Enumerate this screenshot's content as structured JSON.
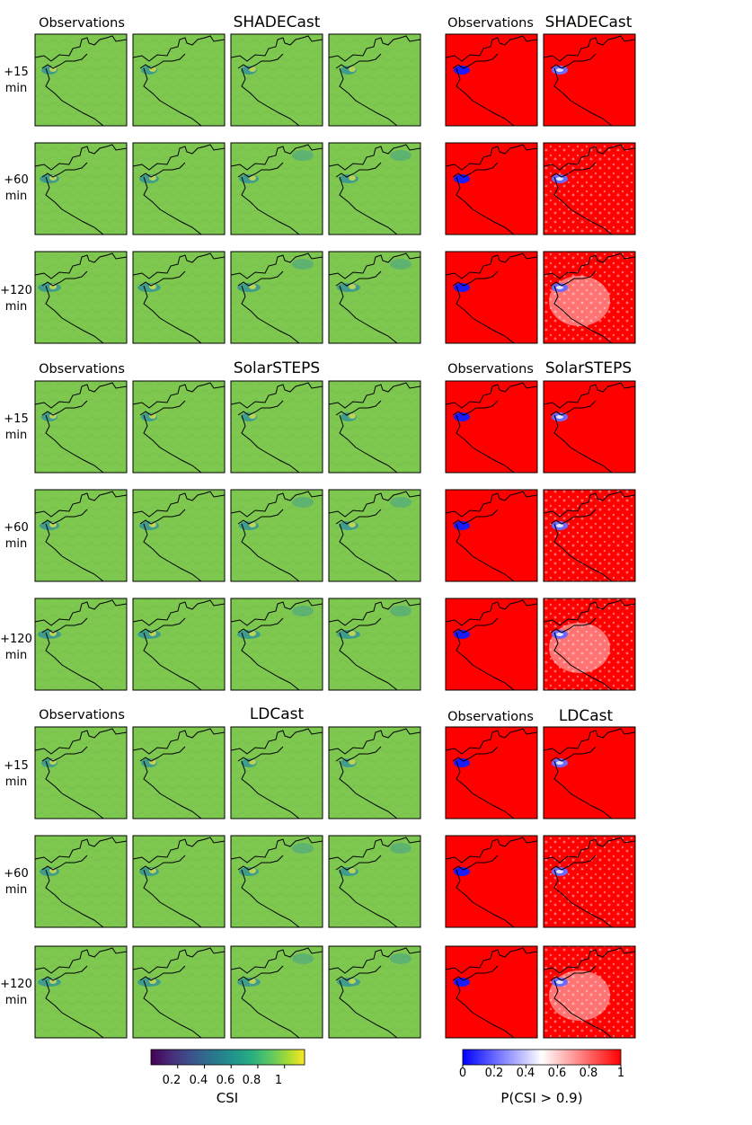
{
  "chart_data": {
    "type": "heatmap",
    "blocks": [
      {
        "method": "SHADECast",
        "observations_label": "Observations",
        "right_observations_label": "Observations",
        "right_method_label": "SHADECast",
        "rows": [
          {
            "lead": "+15",
            "unit": "min"
          },
          {
            "lead": "+60",
            "unit": "min"
          },
          {
            "lead": "+120",
            "unit": "min"
          }
        ]
      },
      {
        "method": "SolarSTEPS",
        "observations_label": "Observations",
        "right_observations_label": "Observations",
        "right_method_label": "SolarSTEPS",
        "rows": [
          {
            "lead": "+15",
            "unit": "min"
          },
          {
            "lead": "+60",
            "unit": "min"
          },
          {
            "lead": "+120",
            "unit": "min"
          }
        ]
      },
      {
        "method": "LDCast",
        "observations_label": "Observations",
        "right_observations_label": "Observations",
        "right_method_label": "LDCast",
        "rows": [
          {
            "lead": "+15",
            "unit": "min"
          },
          {
            "lead": "+60",
            "unit": "min"
          },
          {
            "lead": "+120",
            "unit": "min"
          }
        ]
      }
    ],
    "colorbars": [
      {
        "label": "CSI",
        "colormap": "viridis",
        "ticks": [
          "0.2",
          "0.4",
          "0.6",
          "0.8",
          "1"
        ],
        "tick_values": [
          0.2,
          0.4,
          0.6,
          0.8,
          1.0
        ],
        "range": [
          0.0,
          1.15
        ]
      },
      {
        "label": "P(CSI > 0.9)",
        "colormap": "bwr",
        "ticks": [
          "0",
          "0.2",
          "0.4",
          "0.6",
          "0.8",
          "1"
        ],
        "tick_values": [
          0,
          0.2,
          0.4,
          0.6,
          0.8,
          1.0
        ],
        "range": [
          0,
          1
        ]
      }
    ]
  },
  "colors": {
    "csi_background": "#7ec850",
    "prob_background": "#ff0000",
    "prob_low": "#1a1aff",
    "border": "#000000"
  }
}
